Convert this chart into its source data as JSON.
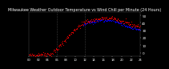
{
  "title": "Milwaukee Weather Outdoor Temperature vs Wind Chill per Minute (24 Hours)",
  "bg_color": "#000000",
  "text_color": "#ffffff",
  "temp_color": "#ff0000",
  "wind_chill_color": "#0000ff",
  "ylim": [
    -5,
    55
  ],
  "xlim": [
    0,
    1440
  ],
  "yticks": [
    0,
    10,
    20,
    30,
    40,
    50
  ],
  "vline1": 360,
  "vline2": 720,
  "title_fontsize": 3.5,
  "tick_fontsize": 3.0
}
